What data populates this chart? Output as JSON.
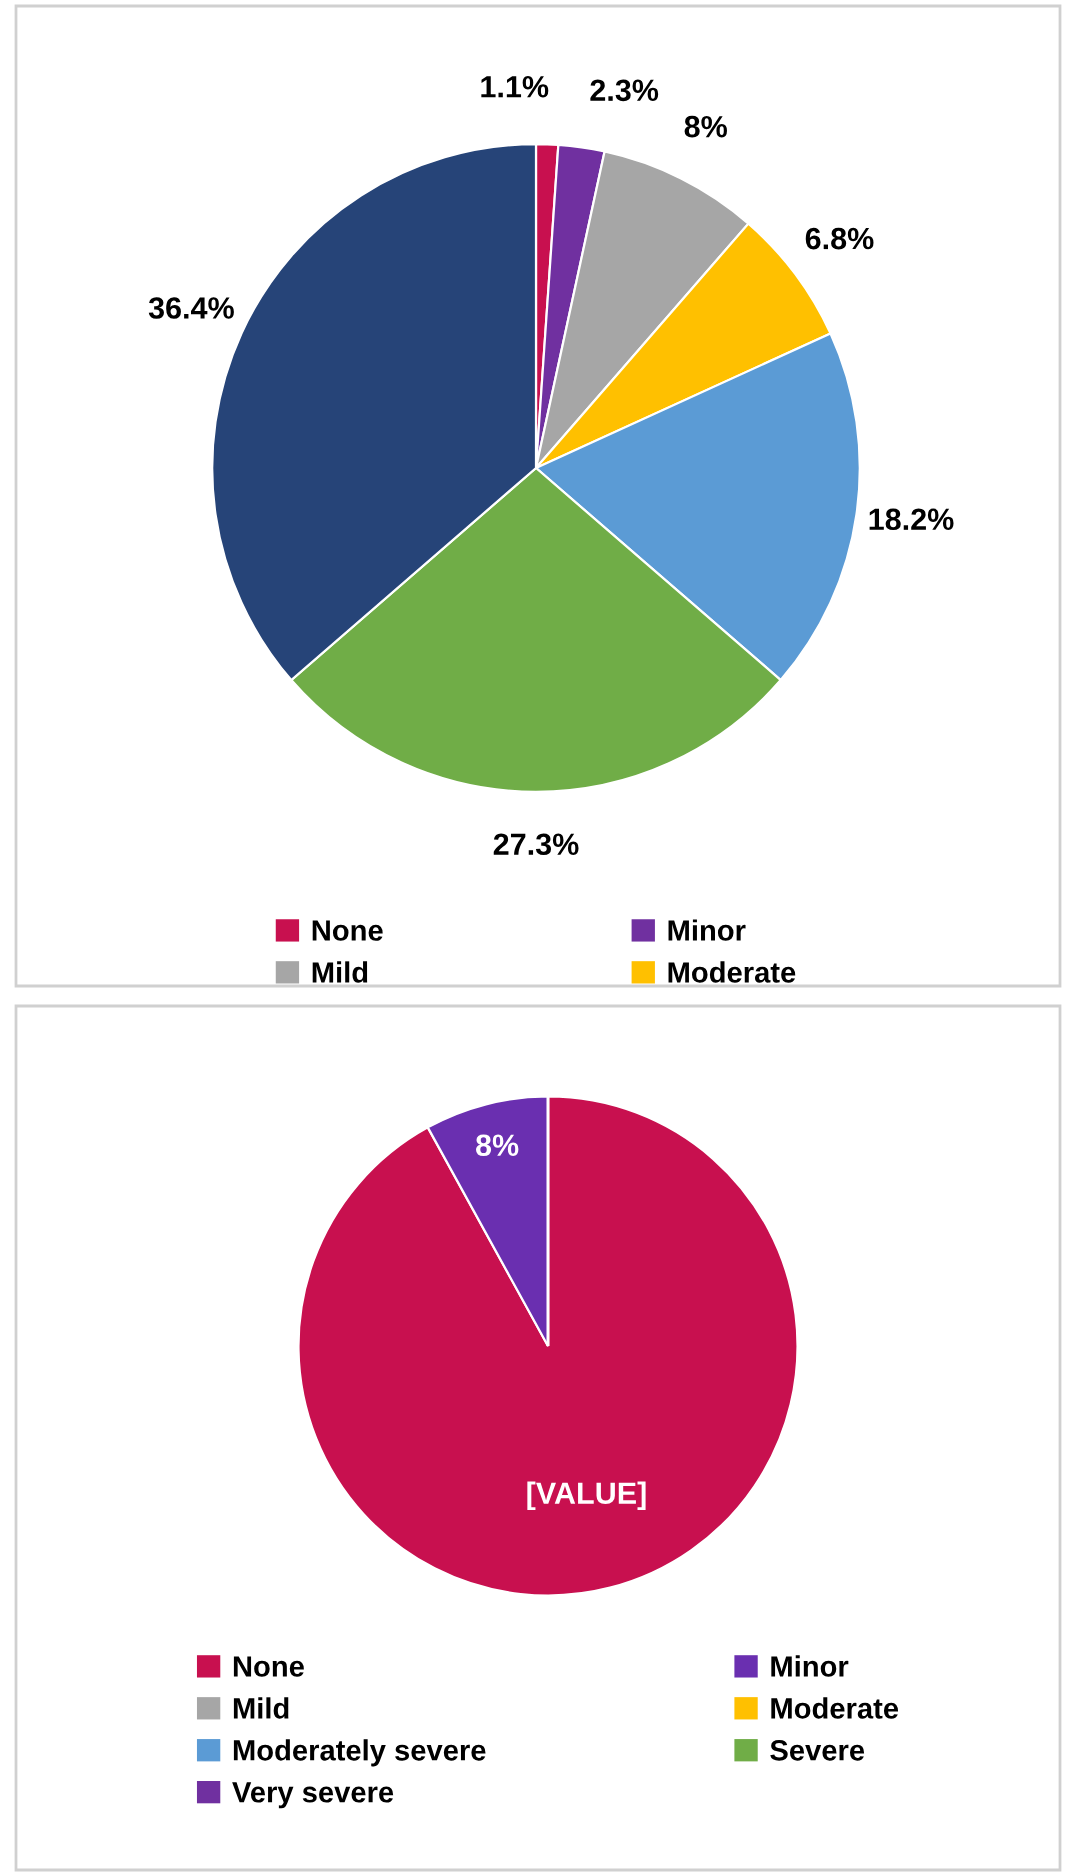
{
  "chart_data": [
    {
      "type": "pie",
      "categories": [
        "None",
        "Minor",
        "Mild",
        "Moderate",
        null,
        null,
        null
      ],
      "values": [
        1.1,
        2.3,
        8,
        6.8,
        18.2,
        27.3,
        36.4
      ],
      "colors": [
        "#c8104f",
        "#7030a0",
        "#a6a6a6",
        "#ffc000",
        "#5b9bd5",
        "#70ad47",
        "#264478"
      ],
      "value_labels": [
        "1.1%",
        "2.3%",
        "8%",
        "6.8%",
        "18.2%",
        "27.3%",
        "36.4%"
      ],
      "legend": "bottom"
    },
    {
      "type": "pie",
      "categories": [
        "None",
        "Minor",
        "Mild",
        "Moderate",
        "Moderately severe",
        "Severe",
        "Very severe"
      ],
      "values": [
        92,
        8,
        0,
        0,
        0,
        0,
        0
      ],
      "colors": [
        "#c8104f",
        "#6a2fb0",
        "#a6a6a6",
        "#ffc000",
        "#5b9bd5",
        "#70ad47",
        "#7030a0"
      ],
      "value_labels": [
        "[VALUE]",
        "8%",
        null,
        null,
        null,
        null,
        null
      ],
      "legend": "bottom"
    }
  ]
}
